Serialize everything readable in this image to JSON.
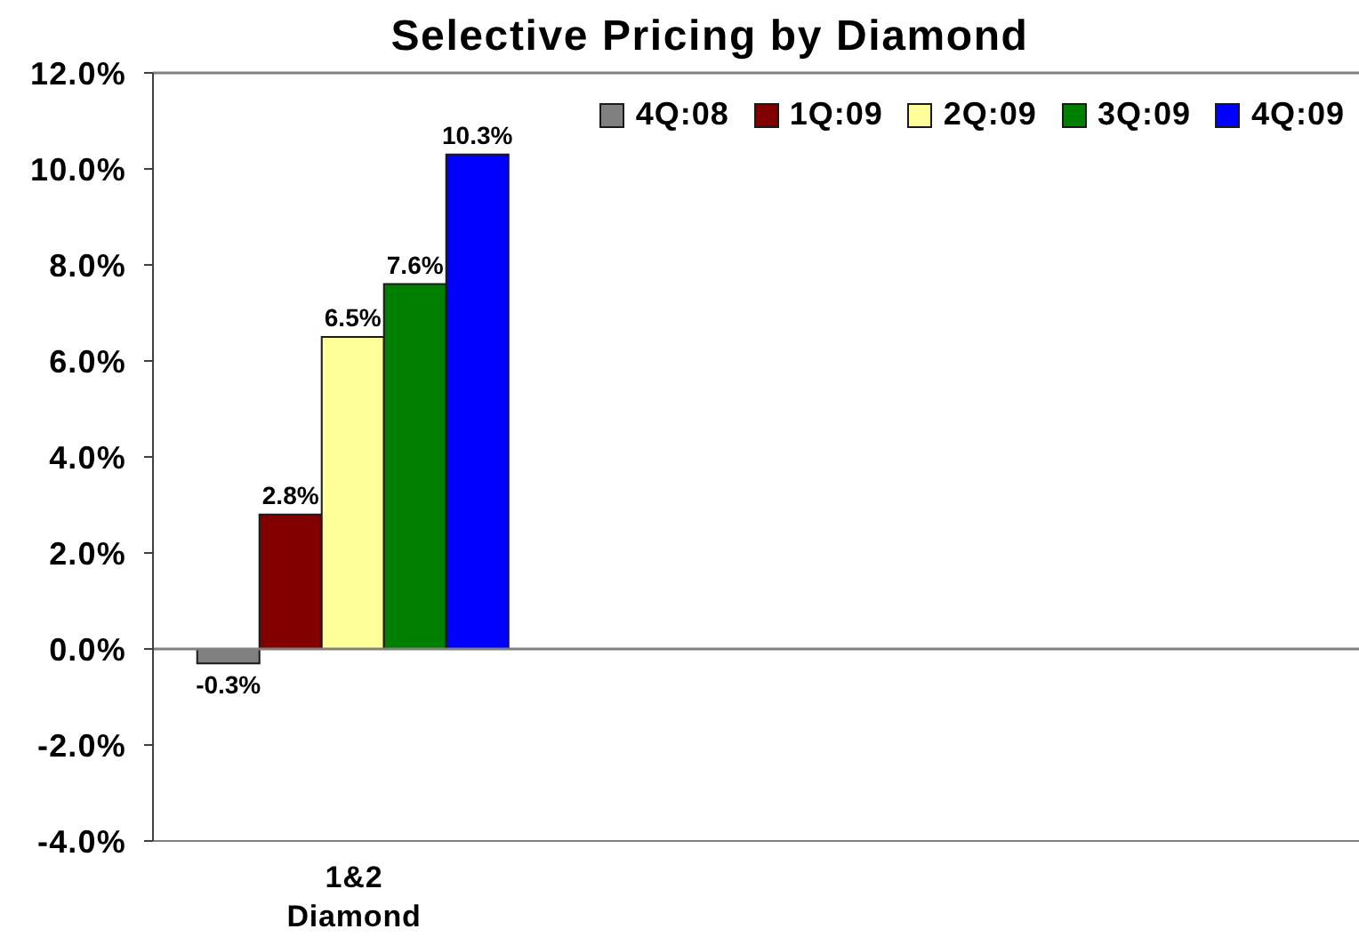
{
  "chart_data": {
    "type": "bar",
    "title": "Selective Pricing by Diamond",
    "categories": [
      "1&2 Diamond",
      null,
      null
    ],
    "series": [
      {
        "name": "4Q:08",
        "color": "#808080",
        "values": [
          -0.3,
          null,
          null
        ],
        "value_labels": [
          "-0.3%",
          null,
          null
        ]
      },
      {
        "name": "1Q:09",
        "color": "#800000",
        "values": [
          2.8,
          null,
          null
        ],
        "value_labels": [
          "2.8%",
          null,
          null
        ]
      },
      {
        "name": "2Q:09",
        "color": "#ffff99",
        "values": [
          6.5,
          null,
          null
        ],
        "value_labels": [
          "6.5%",
          null,
          null
        ]
      },
      {
        "name": "3Q:09",
        "color": "#008000",
        "values": [
          7.6,
          null,
          null
        ],
        "value_labels": [
          "7.6%",
          null,
          null
        ]
      },
      {
        "name": "4Q:09",
        "color": "#0000ff",
        "values": [
          10.3,
          null,
          null
        ],
        "value_labels": [
          "10.3%",
          null,
          null
        ]
      }
    ],
    "ylim": [
      -4,
      12
    ],
    "yticks": [
      {
        "value": -4,
        "label": "-4.0%"
      },
      {
        "value": -2,
        "label": "-2.0%"
      },
      {
        "value": 0,
        "label": "0.0%"
      },
      {
        "value": 2,
        "label": "2.0%"
      },
      {
        "value": 4,
        "label": "4.0%"
      },
      {
        "value": 6,
        "label": "6.0%"
      },
      {
        "value": 8,
        "label": "8.0%"
      },
      {
        "value": 10,
        "label": "10.0%"
      },
      {
        "value": 12,
        "label": "12.0%"
      }
    ],
    "legend": "top right",
    "ref_lines": [
      {
        "axis": "y",
        "value": 0,
        "color": "#808080"
      }
    ]
  }
}
